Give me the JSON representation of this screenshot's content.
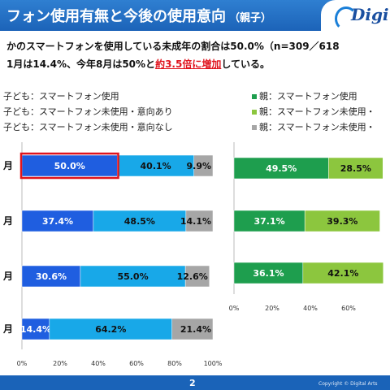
{
  "header": {
    "title": "フォン使用有無と今後の使用意向",
    "subtitle": "（親子）",
    "logo_text": "Digi"
  },
  "description": {
    "line1": "かのスマートフォンを使用している未成年の割合は50.0%（n=309／618",
    "line2_prefix": "1月は14.4%、今年8月は50%と",
    "line2_highlight": "約3.5倍に増加",
    "line2_suffix": "している。"
  },
  "legend_child": [
    {
      "label": "子ども：スマートフォン使用",
      "color": "#1f5ee0"
    },
    {
      "label": "子ども：スマートフォン未使用・意向あり",
      "color": "#18a8e8"
    },
    {
      "label": "子ども：スマートフォン未使用・意向なし",
      "color": "#a6a6a6"
    }
  ],
  "legend_parent": [
    {
      "label": "親：スマートフォン使用",
      "color": "#1e9e4e"
    },
    {
      "label": "親：スマートフォン未使用・",
      "color": "#8cc63e"
    },
    {
      "label": "親：スマートフォン未使用・",
      "color": "#a6a6a6"
    }
  ],
  "chart_data": [
    {
      "type": "bar",
      "orientation": "horizontal",
      "stacked": true,
      "categories": [
        "月",
        "月",
        "月",
        "月"
      ],
      "series": [
        {
          "name": "子ども：スマートフォン使用",
          "values": [
            50.0,
            37.4,
            30.6,
            14.4
          ],
          "color": "#1f5ee0"
        },
        {
          "name": "子ども：スマートフォン未使用・意向あり",
          "values": [
            40.1,
            48.5,
            55.0,
            64.2
          ],
          "color": "#18a8e8"
        },
        {
          "name": "子ども：スマートフォン未使用・意向なし",
          "values": [
            9.9,
            14.1,
            12.6,
            21.4
          ],
          "color": "#a6a6a6"
        }
      ],
      "data_labels": [
        [
          "50.0%",
          "40.1%",
          "9.9%"
        ],
        [
          "37.4%",
          "48.5%",
          "14.1%"
        ],
        [
          "30.6%",
          "55.0%",
          "12.6%"
        ],
        [
          "14.4%",
          "64.2%",
          "21.4%"
        ]
      ],
      "xlim": [
        0,
        100
      ],
      "xticks": [
        "0%",
        "20%",
        "40%",
        "60%",
        "80%",
        "100%"
      ],
      "highlight_label": "50.0%",
      "grid": false
    },
    {
      "type": "bar",
      "orientation": "horizontal",
      "stacked": true,
      "series": [
        {
          "name": "親：スマートフォン使用",
          "values": [
            49.5,
            37.1,
            36.1
          ],
          "color": "#1e9e4e"
        },
        {
          "name": "親：スマートフォン未使用・",
          "values": [
            28.5,
            39.3,
            42.1
          ],
          "color": "#8cc63e"
        }
      ],
      "data_labels": [
        [
          "49.5%",
          "28.5%"
        ],
        [
          "37.1%",
          "39.3%"
        ],
        [
          "36.1%",
          "42.1%"
        ]
      ],
      "xlim": [
        0,
        100
      ],
      "xticks": [
        "0%",
        "20%",
        "40%",
        "60%"
      ],
      "grid": false
    }
  ],
  "footer": {
    "page_number": "2",
    "copyright": "Copyright © Digital Arts"
  }
}
